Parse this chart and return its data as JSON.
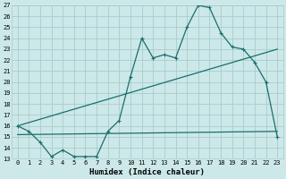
{
  "title": "",
  "xlabel": "Humidex (Indice chaleur)",
  "bg_color": "#cce8e8",
  "grid_color": "#aacccc",
  "line_color": "#1a6e6e",
  "xlim": [
    -0.5,
    23.5
  ],
  "ylim": [
    13,
    27
  ],
  "xticks": [
    0,
    1,
    2,
    3,
    4,
    5,
    6,
    7,
    8,
    9,
    10,
    11,
    12,
    13,
    14,
    15,
    16,
    17,
    18,
    19,
    20,
    21,
    22,
    23
  ],
  "yticks": [
    13,
    14,
    15,
    16,
    17,
    18,
    19,
    20,
    21,
    22,
    23,
    24,
    25,
    26,
    27
  ],
  "series1_x": [
    0,
    1,
    2,
    3,
    4,
    5,
    6,
    7,
    8,
    9,
    10,
    11,
    12,
    13,
    14,
    15,
    16,
    17,
    18,
    19,
    20,
    21,
    22,
    23
  ],
  "series1_y": [
    16.0,
    15.5,
    14.5,
    13.2,
    13.8,
    13.2,
    13.2,
    13.2,
    15.5,
    16.5,
    20.5,
    24.0,
    22.2,
    22.5,
    22.2,
    25.0,
    27.0,
    26.8,
    24.5,
    23.2,
    23.0,
    21.8,
    20.0,
    15.0
  ],
  "series2_x": [
    0,
    23
  ],
  "series2_y": [
    16.0,
    23.0
  ],
  "series3_x": [
    0,
    23
  ],
  "series3_y": [
    15.2,
    15.5
  ],
  "xlabel_fontsize": 6.5,
  "tick_fontsize": 5.0
}
